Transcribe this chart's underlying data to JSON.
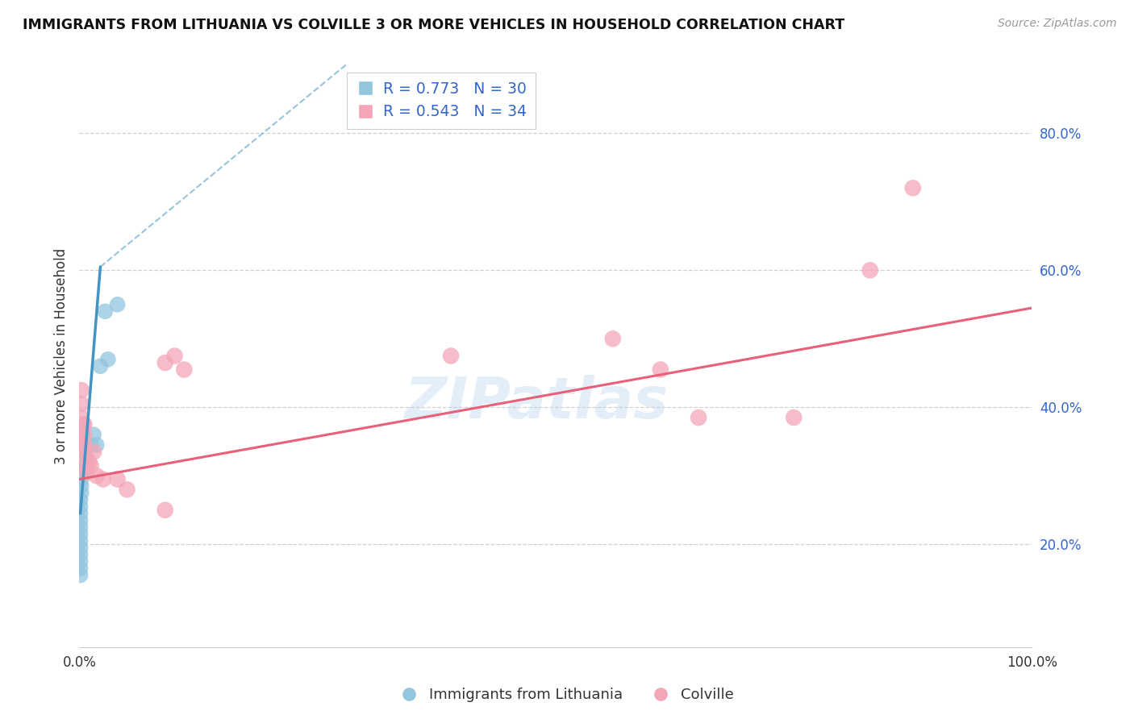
{
  "title": "IMMIGRANTS FROM LITHUANIA VS COLVILLE 3 OR MORE VEHICLES IN HOUSEHOLD CORRELATION CHART",
  "source": "Source: ZipAtlas.com",
  "ylabel": "3 or more Vehicles in Household",
  "ytick_labels": [
    "20.0%",
    "40.0%",
    "60.0%",
    "80.0%"
  ],
  "ytick_values": [
    0.2,
    0.4,
    0.6,
    0.8
  ],
  "xlim": [
    0.0,
    1.0
  ],
  "ylim": [
    0.05,
    0.9
  ],
  "legend_blue_r": "R = 0.773",
  "legend_blue_n": "N = 30",
  "legend_pink_r": "R = 0.543",
  "legend_pink_n": "N = 34",
  "legend_label_blue": "Immigrants from Lithuania",
  "legend_label_pink": "Colville",
  "blue_color": "#92c5de",
  "pink_color": "#f4a6b8",
  "blue_line_color": "#4393c3",
  "pink_line_color": "#e8607a",
  "blue_scatter": [
    [
      0.001,
      0.155
    ],
    [
      0.001,
      0.165
    ],
    [
      0.001,
      0.175
    ],
    [
      0.001,
      0.185
    ],
    [
      0.001,
      0.195
    ],
    [
      0.001,
      0.205
    ],
    [
      0.001,
      0.215
    ],
    [
      0.001,
      0.225
    ],
    [
      0.001,
      0.235
    ],
    [
      0.001,
      0.245
    ],
    [
      0.001,
      0.255
    ],
    [
      0.001,
      0.265
    ],
    [
      0.002,
      0.275
    ],
    [
      0.002,
      0.285
    ],
    [
      0.002,
      0.295
    ],
    [
      0.003,
      0.305
    ],
    [
      0.003,
      0.315
    ],
    [
      0.004,
      0.305
    ],
    [
      0.004,
      0.315
    ],
    [
      0.005,
      0.325
    ],
    [
      0.005,
      0.325
    ],
    [
      0.006,
      0.335
    ],
    [
      0.007,
      0.325
    ],
    [
      0.012,
      0.345
    ],
    [
      0.015,
      0.36
    ],
    [
      0.018,
      0.345
    ],
    [
      0.022,
      0.46
    ],
    [
      0.027,
      0.54
    ],
    [
      0.03,
      0.47
    ],
    [
      0.04,
      0.55
    ]
  ],
  "pink_scatter": [
    [
      0.002,
      0.425
    ],
    [
      0.002,
      0.405
    ],
    [
      0.002,
      0.385
    ],
    [
      0.002,
      0.37
    ],
    [
      0.003,
      0.36
    ],
    [
      0.003,
      0.35
    ],
    [
      0.003,
      0.34
    ],
    [
      0.004,
      0.34
    ],
    [
      0.004,
      0.355
    ],
    [
      0.004,
      0.375
    ],
    [
      0.005,
      0.375
    ],
    [
      0.005,
      0.36
    ],
    [
      0.005,
      0.345
    ],
    [
      0.006,
      0.33
    ],
    [
      0.007,
      0.315
    ],
    [
      0.008,
      0.305
    ],
    [
      0.01,
      0.32
    ],
    [
      0.012,
      0.315
    ],
    [
      0.015,
      0.335
    ],
    [
      0.018,
      0.3
    ],
    [
      0.025,
      0.295
    ],
    [
      0.04,
      0.295
    ],
    [
      0.05,
      0.28
    ],
    [
      0.09,
      0.25
    ],
    [
      0.09,
      0.465
    ],
    [
      0.1,
      0.475
    ],
    [
      0.11,
      0.455
    ],
    [
      0.39,
      0.475
    ],
    [
      0.56,
      0.5
    ],
    [
      0.61,
      0.455
    ],
    [
      0.65,
      0.385
    ],
    [
      0.75,
      0.385
    ],
    [
      0.83,
      0.6
    ],
    [
      0.875,
      0.72
    ]
  ],
  "blue_trendline_solid": [
    [
      0.001,
      0.245
    ],
    [
      0.022,
      0.605
    ]
  ],
  "blue_trendline_dashed": [
    [
      0.022,
      0.605
    ],
    [
      0.28,
      0.9
    ]
  ],
  "pink_trendline": [
    [
      0.0,
      0.295
    ],
    [
      1.0,
      0.545
    ]
  ],
  "watermark_text": "ZIPatlas",
  "background_color": "#ffffff",
  "grid_color": "#d0d0d0",
  "title_fontsize": 12.5,
  "tick_fontsize": 12,
  "label_fontsize": 12,
  "source_fontsize": 10
}
